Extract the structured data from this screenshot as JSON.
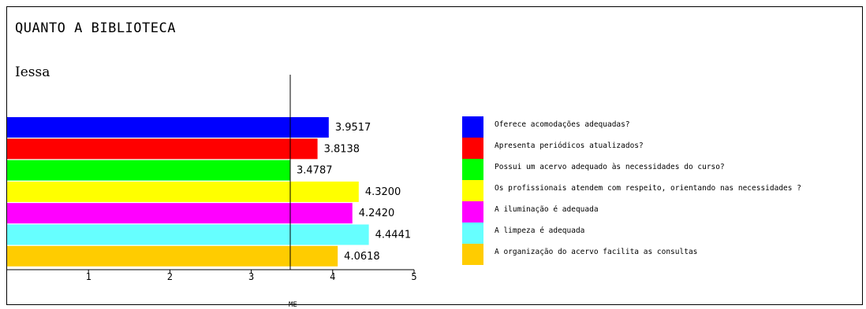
{
  "header": {
    "title": "QUANTO A BIBLIOTECA",
    "subtitle": "Iessa",
    "reference_label": "ME"
  },
  "chart_data": {
    "type": "bar",
    "orientation": "horizontal",
    "xlim": [
      0,
      5
    ],
    "x_ticks": [
      "1",
      "2",
      "3",
      "4",
      "5"
    ],
    "reference_line": 3.4787,
    "legend_position": "right",
    "series": [
      {
        "name": "Oferece acomodações adequadas?",
        "value": 3.9517,
        "label": "3.9517",
        "color": "#0000ff"
      },
      {
        "name": "Apresenta periódicos atualizados?",
        "value": 3.8138,
        "label": "3.8138",
        "color": "#ff0000"
      },
      {
        "name": "Possui um acervo adequado às necessidades do curso?",
        "value": 3.4787,
        "label": "3.4787",
        "color": "#00ff00"
      },
      {
        "name": "Os profissionais atendem com respeito, orientando nas necessidades ?",
        "value": 4.32,
        "label": "4.3200",
        "color": "#ffff00"
      },
      {
        "name": "A iluminação é adequada",
        "value": 4.242,
        "label": "4.2420",
        "color": "#ff00ff"
      },
      {
        "name": "A limpeza é adequada",
        "value": 4.4441,
        "label": "4.4441",
        "color": "#66ffff"
      },
      {
        "name": "A organização do acervo facilita as consultas",
        "value": 4.0618,
        "label": "4.0618",
        "color": "#ffcc00"
      }
    ]
  }
}
